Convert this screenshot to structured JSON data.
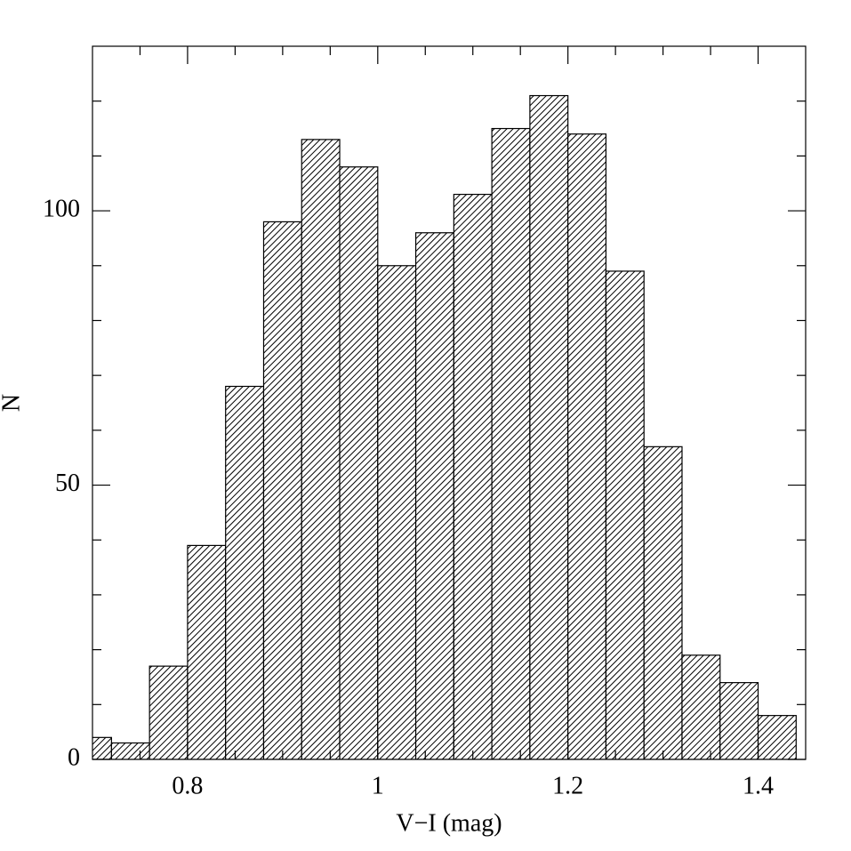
{
  "chart_data": {
    "type": "histogram",
    "xlabel": "V−I (mag)",
    "ylabel": "N",
    "bins": [
      0.68,
      0.72,
      0.76,
      0.8,
      0.84,
      0.88,
      0.92,
      0.96,
      1.0,
      1.04,
      1.08,
      1.12,
      1.16,
      1.2,
      1.24,
      1.28,
      1.32,
      1.36,
      1.4,
      1.44
    ],
    "counts": [
      4,
      3,
      17,
      39,
      68,
      98,
      113,
      108,
      90,
      96,
      103,
      115,
      121,
      114,
      89,
      57,
      19,
      14,
      8
    ],
    "color": "#000000",
    "xlim": [
      0.7,
      1.45
    ],
    "xticks": [
      0.8,
      1,
      1.2,
      1.4
    ],
    "xminorticks": [
      0.75,
      0.85,
      0.9,
      0.95,
      1.05,
      1.1,
      1.15,
      1.25,
      1.3,
      1.35
    ],
    "ylim": [
      0,
      130
    ],
    "yticks": [
      0,
      50,
      100
    ],
    "yminorticks": [
      10,
      20,
      30,
      40,
      60,
      70,
      80,
      90,
      110,
      120
    ],
    "grid": false
  }
}
